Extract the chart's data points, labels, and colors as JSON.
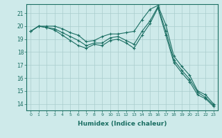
{
  "xlabel": "Humidex (Indice chaleur)",
  "xlim": [
    -0.5,
    23.5
  ],
  "ylim": [
    13.5,
    21.7
  ],
  "yticks": [
    14,
    15,
    16,
    17,
    18,
    19,
    20,
    21
  ],
  "xticks": [
    0,
    1,
    2,
    3,
    4,
    5,
    6,
    7,
    8,
    9,
    10,
    11,
    12,
    13,
    14,
    15,
    16,
    17,
    18,
    19,
    20,
    21,
    22,
    23
  ],
  "background_color": "#ceeaea",
  "grid_color": "#aacccc",
  "line_color": "#1a6e62",
  "series": [
    [
      19.6,
      20.0,
      20.0,
      20.0,
      19.8,
      19.5,
      19.3,
      18.8,
      18.9,
      19.2,
      19.4,
      19.4,
      19.5,
      19.6,
      20.5,
      21.3,
      21.6,
      20.1,
      17.7,
      16.9,
      16.2,
      15.0,
      14.7,
      14.0
    ],
    [
      19.6,
      20.0,
      19.9,
      19.8,
      19.5,
      19.2,
      18.9,
      18.5,
      18.7,
      18.7,
      19.1,
      19.2,
      18.9,
      18.6,
      19.6,
      20.4,
      21.5,
      19.6,
      17.4,
      16.6,
      15.9,
      14.9,
      14.5,
      13.9
    ],
    [
      19.6,
      20.0,
      19.9,
      19.7,
      19.3,
      18.9,
      18.5,
      18.3,
      18.6,
      18.5,
      18.9,
      19.0,
      18.7,
      18.3,
      19.3,
      20.2,
      21.4,
      19.3,
      17.2,
      16.4,
      15.7,
      14.7,
      14.4,
      13.8
    ]
  ]
}
